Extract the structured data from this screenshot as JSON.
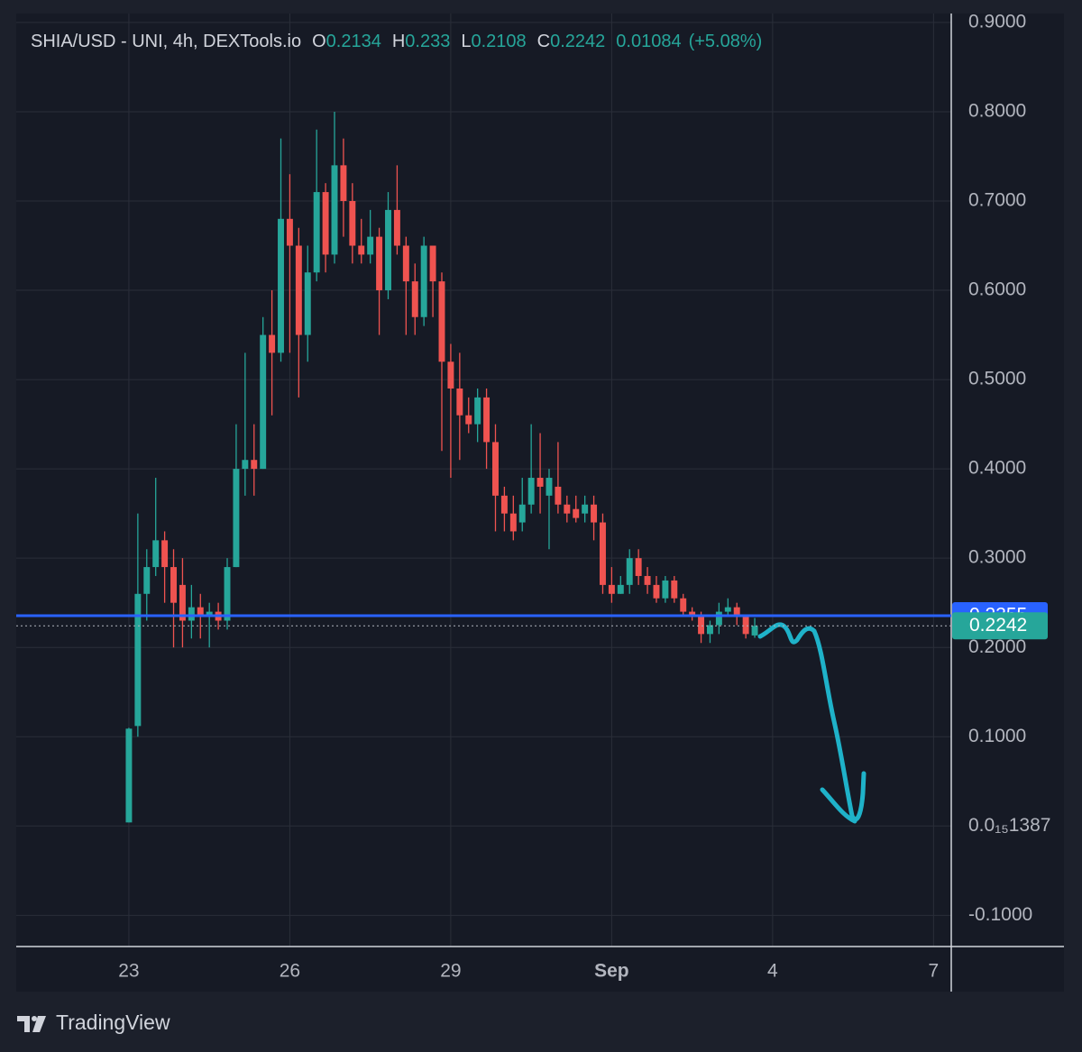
{
  "chart_data": {
    "type": "candlestick",
    "legend": {
      "symbol": "SHIA/USD - UNI, 4h, DEXTools.io",
      "o_label": "O",
      "h_label": "H",
      "l_label": "L",
      "c_label": "C",
      "change": "0.01084",
      "change_pct": "(+5.08%)"
    },
    "brand": "TradingView",
    "up_color": "#26a69a",
    "down_color": "#ef5350",
    "x": [
      0,
      0.1667,
      0.3333,
      0.5,
      0.6667,
      0.8333,
      1,
      1.1667,
      1.3333,
      1.5,
      1.6667,
      1.8333,
      2,
      2.1667,
      2.3333,
      2.5,
      2.6667,
      2.8333,
      3,
      3.1667,
      3.3333,
      3.5,
      3.6667,
      3.8333,
      4,
      4.1667,
      4.3333,
      4.5,
      4.6667,
      4.8333,
      5,
      5.1667,
      5.3333,
      5.5,
      5.6667,
      5.8333,
      6,
      6.1667,
      6.3333,
      6.5,
      6.6667,
      6.8333,
      7,
      7.1667,
      7.3333,
      7.5,
      7.6667,
      7.8333,
      8,
      8.1667,
      8.3333,
      8.5,
      8.6667,
      8.8333,
      9,
      9.1667,
      9.3333,
      9.5,
      9.6667,
      9.8333,
      10,
      10.1667,
      10.3333,
      10.5,
      10.6667,
      10.8333,
      11,
      11.1667,
      11.3333,
      11.5,
      11.6667
    ],
    "open": [
      0.004,
      0.112,
      0.26,
      0.29,
      0.32,
      0.29,
      0.27,
      0.23,
      0.245,
      0.235,
      0.24,
      0.23,
      0.29,
      0.4,
      0.41,
      0.4,
      0.55,
      0.53,
      0.68,
      0.65,
      0.55,
      0.62,
      0.71,
      0.64,
      0.74,
      0.7,
      0.65,
      0.64,
      0.66,
      0.6,
      0.69,
      0.65,
      0.61,
      0.57,
      0.65,
      0.61,
      0.52,
      0.49,
      0.46,
      0.45,
      0.48,
      0.43,
      0.37,
      0.35,
      0.34,
      0.36,
      0.39,
      0.37,
      0.38,
      0.36,
      0.355,
      0.35,
      0.36,
      0.34,
      0.27,
      0.26,
      0.27,
      0.3,
      0.28,
      0.27,
      0.255,
      0.275,
      0.255,
      0.24,
      0.235,
      0.215,
      0.225,
      0.24,
      0.245,
      0.235,
      0.2134
    ],
    "high": [
      0.11,
      0.35,
      0.31,
      0.39,
      0.33,
      0.31,
      0.3,
      0.27,
      0.26,
      0.25,
      0.25,
      0.3,
      0.45,
      0.53,
      0.45,
      0.57,
      0.6,
      0.77,
      0.73,
      0.67,
      0.65,
      0.78,
      0.72,
      0.8,
      0.77,
      0.72,
      0.68,
      0.69,
      0.67,
      0.71,
      0.74,
      0.66,
      0.63,
      0.66,
      0.65,
      0.62,
      0.54,
      0.53,
      0.48,
      0.49,
      0.49,
      0.45,
      0.38,
      0.37,
      0.39,
      0.45,
      0.44,
      0.4,
      0.43,
      0.37,
      0.37,
      0.37,
      0.37,
      0.35,
      0.29,
      0.28,
      0.31,
      0.31,
      0.29,
      0.28,
      0.28,
      0.28,
      0.26,
      0.245,
      0.24,
      0.23,
      0.25,
      0.255,
      0.25,
      0.235,
      0.233
    ],
    "low": [
      0.004,
      0.1,
      0.23,
      0.28,
      0.25,
      0.2,
      0.2,
      0.21,
      0.21,
      0.2,
      0.22,
      0.22,
      0.29,
      0.37,
      0.37,
      0.4,
      0.46,
      0.52,
      0.53,
      0.48,
      0.52,
      0.61,
      0.62,
      0.63,
      0.66,
      0.63,
      0.63,
      0.63,
      0.55,
      0.59,
      0.64,
      0.55,
      0.55,
      0.56,
      0.57,
      0.42,
      0.39,
      0.41,
      0.44,
      0.43,
      0.4,
      0.33,
      0.33,
      0.32,
      0.33,
      0.35,
      0.35,
      0.31,
      0.35,
      0.34,
      0.34,
      0.34,
      0.32,
      0.26,
      0.25,
      0.26,
      0.26,
      0.27,
      0.26,
      0.25,
      0.25,
      0.25,
      0.235,
      0.23,
      0.205,
      0.205,
      0.215,
      0.235,
      0.225,
      0.21,
      0.2108
    ],
    "close": [
      0.109,
      0.26,
      0.29,
      0.32,
      0.29,
      0.25,
      0.23,
      0.245,
      0.235,
      0.24,
      0.23,
      0.29,
      0.4,
      0.41,
      0.4,
      0.55,
      0.53,
      0.68,
      0.65,
      0.55,
      0.62,
      0.71,
      0.64,
      0.74,
      0.7,
      0.65,
      0.64,
      0.66,
      0.6,
      0.69,
      0.65,
      0.61,
      0.57,
      0.65,
      0.61,
      0.52,
      0.49,
      0.46,
      0.45,
      0.48,
      0.43,
      0.37,
      0.35,
      0.33,
      0.36,
      0.39,
      0.38,
      0.39,
      0.36,
      0.35,
      0.345,
      0.36,
      0.34,
      0.27,
      0.26,
      0.27,
      0.3,
      0.28,
      0.27,
      0.255,
      0.275,
      0.255,
      0.24,
      0.235,
      0.215,
      0.225,
      0.24,
      0.245,
      0.235,
      0.215,
      0.2242
    ],
    "xlim": [
      -2.1,
      15.33
    ],
    "xticks": [
      {
        "value": 0,
        "label": "23"
      },
      {
        "value": 3,
        "label": "26"
      },
      {
        "value": 6,
        "label": "29"
      },
      {
        "value": 9,
        "label": "Sep"
      },
      {
        "value": 12,
        "label": "4"
      },
      {
        "value": 15,
        "label": "7"
      }
    ],
    "ylim": [
      -0.135,
      0.91
    ],
    "yticks": [
      {
        "value": -0.1,
        "label": "-0.1000"
      },
      {
        "value": 0,
        "label": "0.0₁₅1387"
      },
      {
        "value": 0.1,
        "label": "0.1000"
      },
      {
        "value": 0.2,
        "label": "0.2000"
      },
      {
        "value": 0.3,
        "label": "0.3000"
      },
      {
        "value": 0.4,
        "label": "0.4000"
      },
      {
        "value": 0.5,
        "label": "0.5000"
      },
      {
        "value": 0.6,
        "label": "0.6000"
      },
      {
        "value": 0.7,
        "label": "0.7000"
      },
      {
        "value": 0.8,
        "label": "0.8000"
      },
      {
        "value": 0.9,
        "label": "0.9000"
      }
    ],
    "hlines": [
      {
        "value": 0.2355,
        "color": "#2962ff"
      }
    ],
    "grid": true
  }
}
